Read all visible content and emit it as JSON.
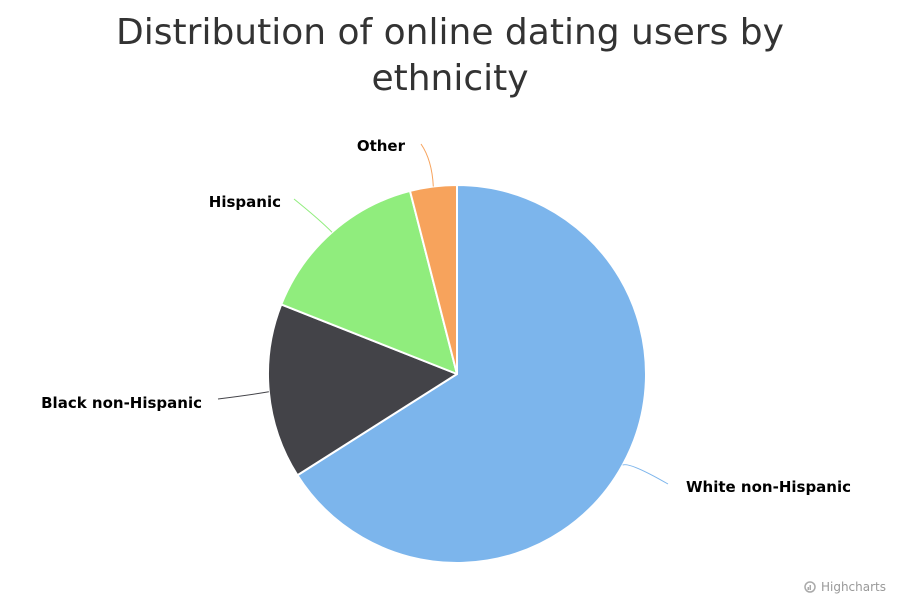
{
  "chart_data": {
    "type": "pie",
    "title_lines": [
      "Distribution of online dating users by",
      "ethnicity"
    ],
    "slices": [
      {
        "name": "White non-Hispanic",
        "value": 66,
        "color": "#7cb5ec"
      },
      {
        "name": "Black non-Hispanic",
        "value": 15,
        "color": "#434348"
      },
      {
        "name": "Hispanic",
        "value": 15,
        "color": "#90ed7d"
      },
      {
        "name": "Other",
        "value": 4,
        "color": "#f7a35c"
      }
    ]
  },
  "credits": {
    "text": "Highcharts",
    "icon": "highcharts-logo-icon"
  }
}
